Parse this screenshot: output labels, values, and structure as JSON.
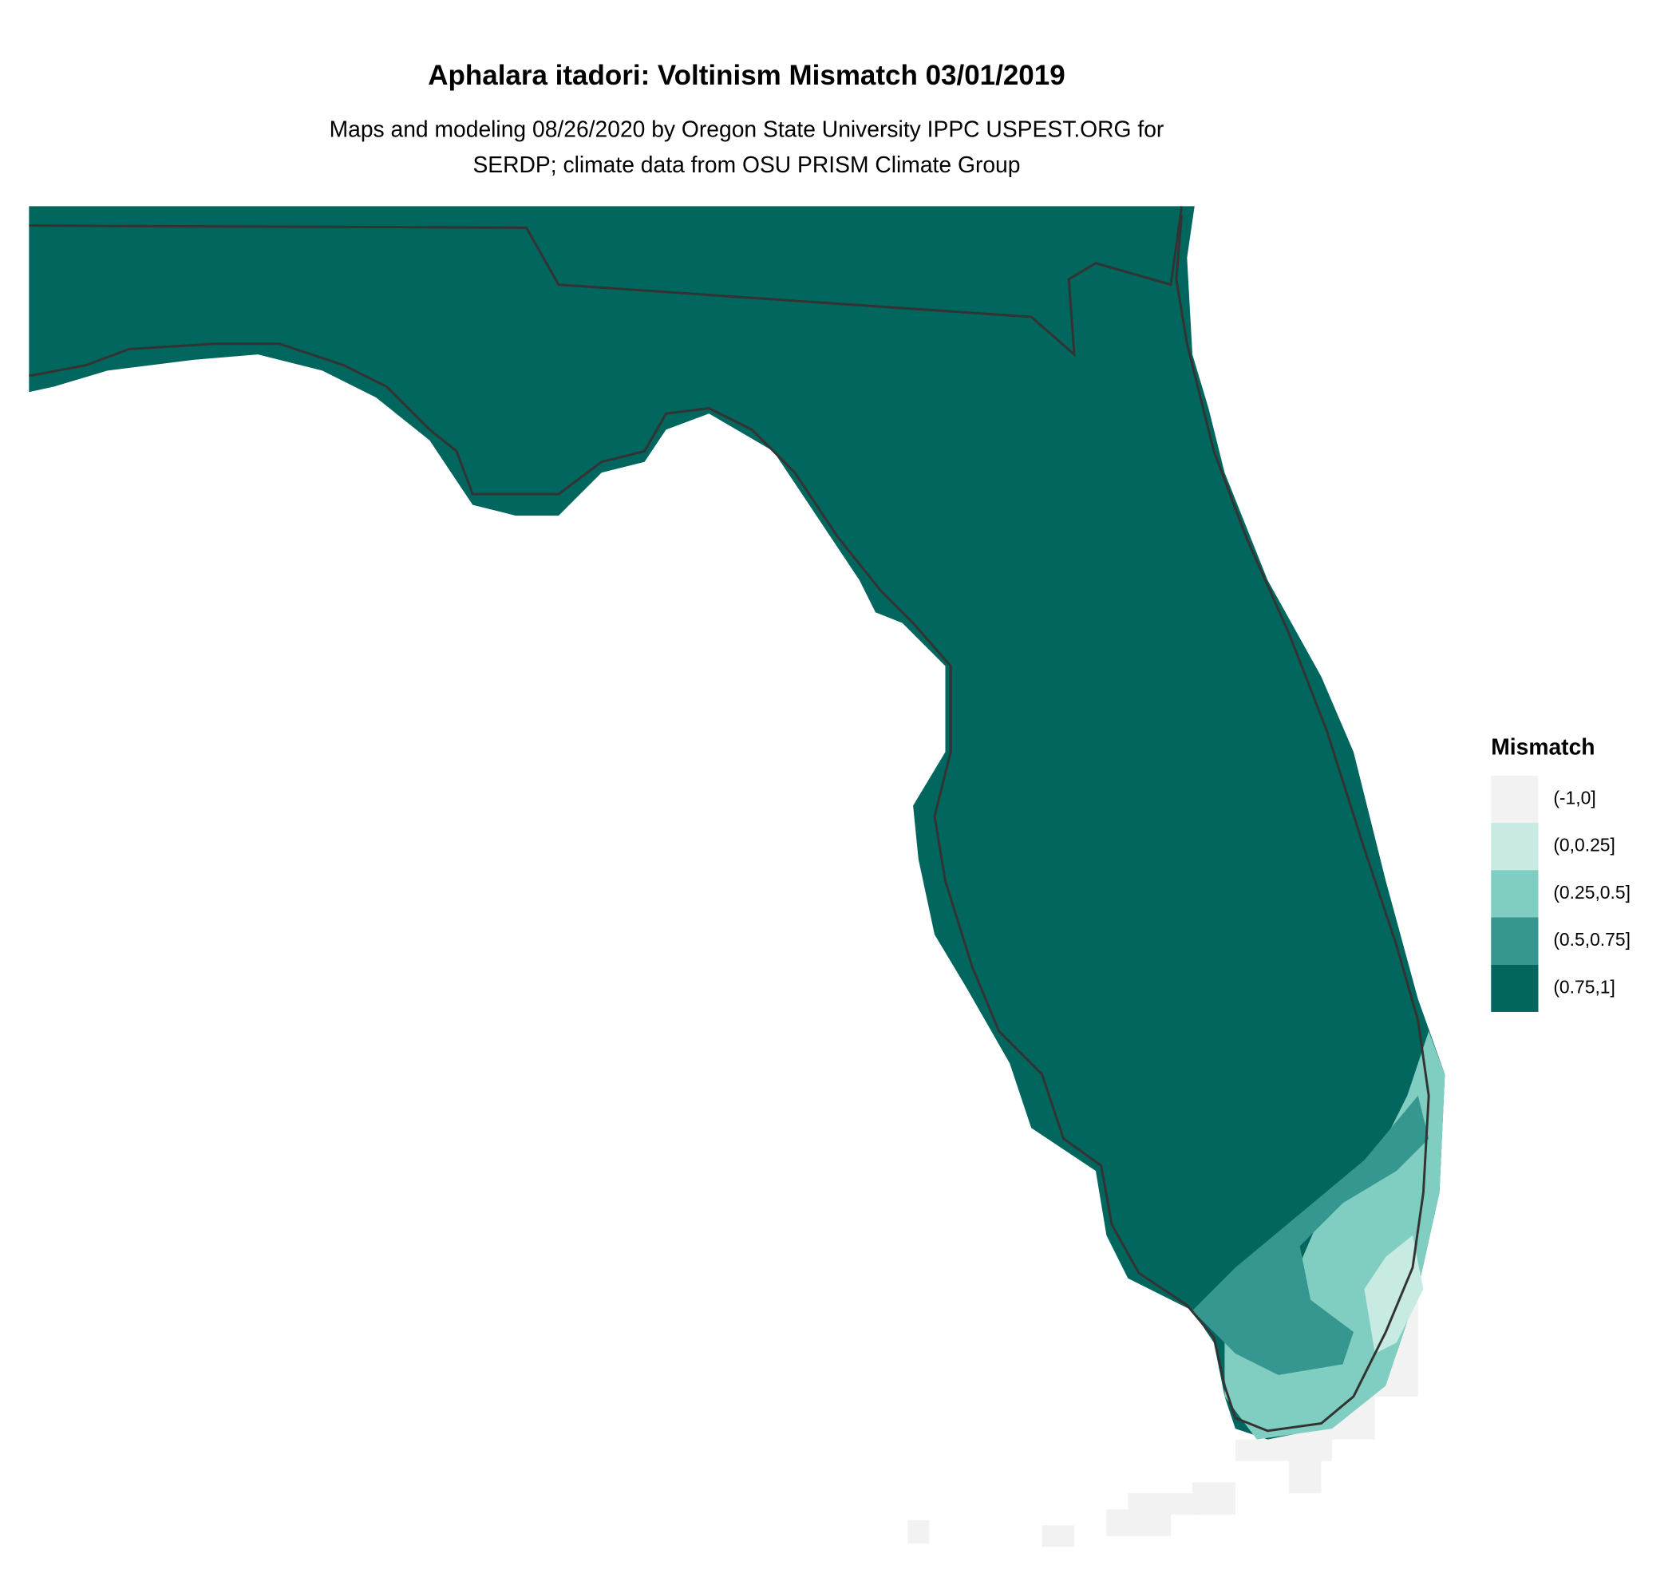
{
  "title": "Aphalara itadori: Voltinism Mismatch 03/01/2019",
  "subtitle": [
    "Maps and modeling 08/26/2020 by Oregon State University IPPC USPEST.ORG for",
    "SERDP; climate data from OSU PRISM Climate Group"
  ],
  "legend": {
    "title": "Mismatch",
    "items": [
      {
        "label": "(-1,0]",
        "color": "#f2f2f2"
      },
      {
        "label": "(0,0.25]",
        "color": "#c7eae2"
      },
      {
        "label": "(0.25,0.5]",
        "color": "#80cdc1"
      },
      {
        "label": "(0.5,0.75]",
        "color": "#35978f"
      },
      {
        "label": "(0.75,1]",
        "color": "#01665e"
      }
    ]
  }
}
